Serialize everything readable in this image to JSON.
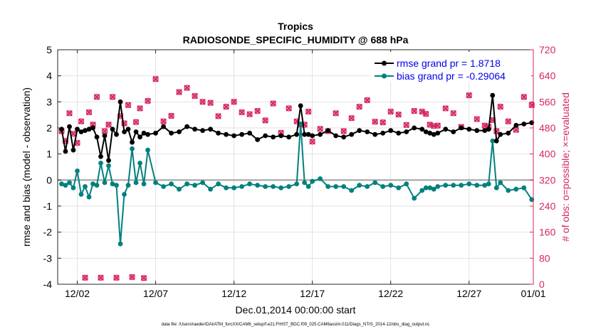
{
  "chart_data": {
    "type": "line",
    "title": "Tropics",
    "subtitle": "RADIOSONDE_SPECIFIC_HUMIDITY @ 688 hPa",
    "xlabel": "Dec.01,2014 00:00:00 start",
    "ylabel": "rmse and bias (model - observation)",
    "ylabel_right": "# of obs: o=possible; ×=evaluated",
    "footnote": "data file: /Users/raeder/DAI/ATM_forcXX/CAM6_setup/f.e21.FHIST_BGC.f09_025.CAM6assim.011/Diags_NTrS_2014-12/obs_diag_output.nc",
    "xlim": [
      0.75,
      31.1
    ],
    "ylim": [
      -4,
      5
    ],
    "ylim_right": [
      0,
      720
    ],
    "x_ticks": [
      2,
      7,
      12,
      17,
      22,
      27,
      32
    ],
    "x_tick_labels": [
      "12/02",
      "12/07",
      "12/12",
      "12/17",
      "12/22",
      "12/27",
      "01/01"
    ],
    "y_ticks": [
      -4,
      -3,
      -2,
      -1,
      0,
      1,
      2,
      3,
      4,
      5
    ],
    "y_ticks_right": [
      0,
      80,
      160,
      240,
      320,
      400,
      480,
      560,
      640,
      720
    ],
    "colors": {
      "rmse": "#000000",
      "bias": "#00807f",
      "obs": "#d6275e",
      "legend_text": "#0000ee",
      "zero_line": "#a0a0a0",
      "grid": "#e2e2e2"
    },
    "legend": {
      "placement": "top-right",
      "entries": [
        "rmse grand pr = 1.8718",
        "bias grand pr = -0.29064"
      ]
    },
    "x": [
      1.0,
      1.25,
      1.5,
      1.75,
      2.0,
      2.25,
      2.5,
      2.75,
      3.0,
      3.25,
      3.5,
      3.75,
      4.0,
      4.25,
      4.5,
      4.75,
      5.0,
      5.25,
      5.5,
      5.75,
      6.0,
      6.25,
      6.5,
      7.0,
      7.5,
      8.0,
      8.5,
      9.0,
      9.5,
      10.0,
      10.5,
      11.0,
      11.5,
      12.0,
      12.5,
      13.0,
      13.5,
      14.0,
      14.5,
      15.0,
      15.5,
      16.0,
      16.25,
      16.5,
      16.75,
      17.0,
      17.5,
      18.0,
      18.5,
      19.0,
      19.5,
      20.0,
      20.5,
      21.0,
      21.5,
      22.0,
      22.5,
      23.0,
      23.5,
      24.0,
      24.25,
      24.5,
      24.75,
      25.0,
      25.5,
      26.0,
      26.5,
      27.0,
      27.5,
      28.0,
      28.25,
      28.5,
      28.75,
      29.0,
      29.5,
      30.0,
      30.5,
      31.0
    ],
    "series": [
      {
        "name": "rmse",
        "values": [
          1.95,
          1.1,
          2.05,
          1.15,
          1.95,
          1.85,
          1.9,
          1.95,
          2.0,
          1.65,
          0.9,
          1.7,
          0.75,
          1.95,
          1.75,
          3.0,
          1.85,
          1.95,
          1.45,
          1.85,
          1.65,
          1.8,
          1.75,
          1.8,
          2.05,
          1.8,
          1.85,
          2.05,
          1.95,
          1.9,
          1.95,
          1.8,
          1.75,
          1.7,
          1.75,
          1.8,
          1.55,
          1.7,
          1.65,
          1.7,
          1.65,
          1.75,
          2.85,
          1.75,
          1.75,
          1.7,
          1.75,
          1.9,
          1.7,
          1.65,
          1.75,
          1.9,
          1.85,
          1.75,
          1.8,
          1.9,
          1.8,
          1.85,
          2.0,
          1.95,
          1.85,
          1.8,
          1.75,
          1.8,
          1.95,
          1.85,
          2.0,
          1.95,
          1.9,
          1.9,
          1.95,
          3.25,
          1.5,
          1.75,
          1.8,
          2.1,
          2.15,
          2.2
        ]
      },
      {
        "name": "bias",
        "values": [
          -0.15,
          -0.2,
          -0.1,
          -0.3,
          0.35,
          -0.55,
          -0.25,
          -0.65,
          -0.15,
          -0.2,
          0.65,
          -0.1,
          0.55,
          -0.15,
          -0.2,
          -2.45,
          -0.55,
          -0.2,
          1.2,
          -0.1,
          0.65,
          -0.15,
          1.15,
          -0.1,
          -0.25,
          -0.15,
          -0.35,
          -0.15,
          -0.2,
          -0.1,
          -0.35,
          -0.15,
          -0.3,
          -0.3,
          -0.25,
          -0.15,
          -0.2,
          -0.25,
          -0.25,
          -0.3,
          -0.25,
          -0.15,
          2.15,
          -0.1,
          -0.25,
          -0.05,
          0.05,
          -0.25,
          -0.25,
          -0.25,
          -0.4,
          -0.2,
          -0.25,
          -0.1,
          -0.25,
          -0.2,
          -0.3,
          -0.15,
          -0.7,
          -0.4,
          -0.3,
          -0.3,
          -0.35,
          -0.25,
          -0.2,
          -0.2,
          -0.2,
          -0.15,
          -0.2,
          -0.2,
          -0.15,
          1.5,
          -0.3,
          -0.1,
          -0.4,
          -0.35,
          -0.3,
          -0.75
        ]
      },
      {
        "name": "obs_possible",
        "values": [
          470,
          440,
          525,
          462,
          434,
          500,
          20,
          528,
          490,
          575,
          20,
          470,
          490,
          575,
          20,
          516,
          494,
          550,
          22,
          498,
          540,
          19,
          563,
          630,
          500,
          517,
          590,
          603,
          578,
          560,
          557,
          516,
          545,
          560,
          528,
          522,
          532,
          503,
          555,
          465,
          540,
          500,
          490,
          490,
          530,
          438,
          477,
          470,
          525,
          470,
          510,
          545,
          565,
          499,
          497,
          530,
          521,
          489,
          532,
          530,
          523,
          490,
          486,
          487,
          540,
          525,
          483,
          580,
          507,
          487,
          483,
          504,
          470,
          545,
          500,
          474,
          575,
          550
        ]
      },
      {
        "name": "obs_evaluated",
        "values": [
          470,
          440,
          525,
          462,
          434,
          500,
          20,
          528,
          490,
          575,
          20,
          470,
          490,
          575,
          20,
          516,
          494,
          550,
          22,
          498,
          540,
          19,
          563,
          630,
          500,
          517,
          590,
          603,
          578,
          560,
          557,
          516,
          545,
          560,
          528,
          522,
          532,
          503,
          555,
          465,
          540,
          500,
          490,
          490,
          530,
          438,
          477,
          470,
          525,
          470,
          510,
          545,
          565,
          499,
          497,
          530,
          521,
          489,
          532,
          530,
          523,
          490,
          486,
          487,
          540,
          525,
          483,
          580,
          507,
          487,
          483,
          504,
          470,
          545,
          500,
          474,
          575,
          550
        ]
      }
    ]
  }
}
